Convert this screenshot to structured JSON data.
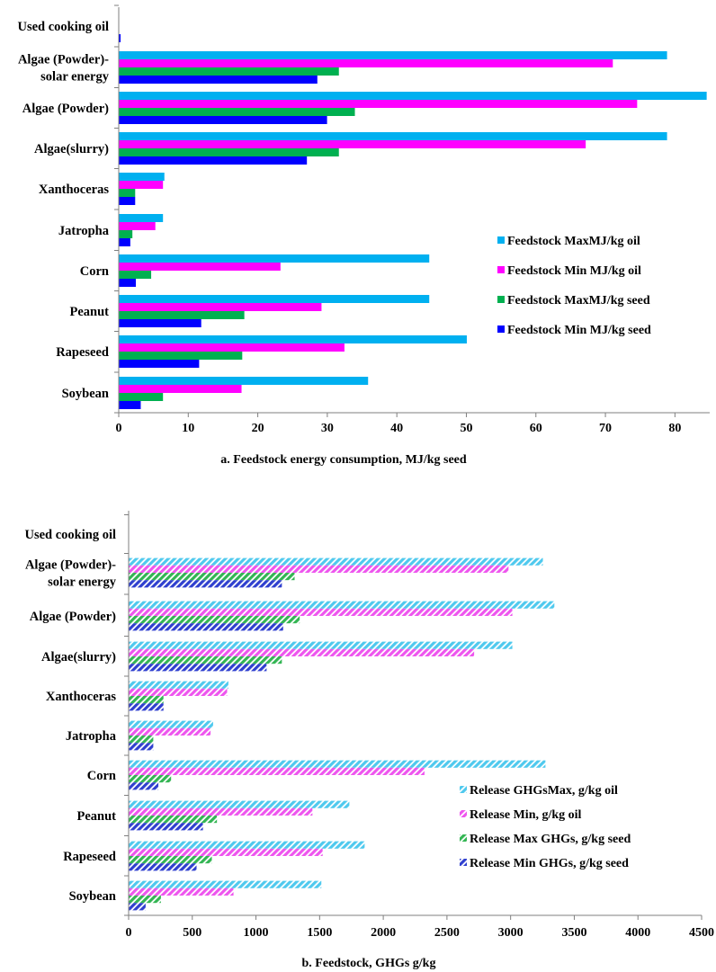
{
  "chart_data": [
    {
      "type": "bar",
      "orientation": "horizontal",
      "title": "a. Feedstock energy consumption, MJ/kg seed",
      "xlabel": "a. Feedstock energy consumption, MJ/kg seed",
      "xlim": [
        0,
        85
      ],
      "xticks": [
        0,
        10,
        20,
        30,
        40,
        50,
        60,
        70,
        80
      ],
      "legend_position": "right",
      "categories": [
        "Used cooking oil",
        "Algae (Powder)-solar energy",
        "Algae (Powder)",
        "Algae(slurry)",
        "Xanthoceras",
        "Jatropha",
        "Corn",
        "Peanut",
        "Rapeseed",
        "Soybean"
      ],
      "category_lines": [
        [
          "Used cooking oil"
        ],
        [
          "Algae (Powder)-",
          "solar energy"
        ],
        [
          "Algae (Powder)"
        ],
        [
          "Algae(slurry)"
        ],
        [
          "Xanthoceras"
        ],
        [
          "Jatropha"
        ],
        [
          "Corn"
        ],
        [
          "Peanut"
        ],
        [
          "Rapeseed"
        ],
        [
          "Soybean"
        ]
      ],
      "series": [
        {
          "name": "Feedstock MaxMJ/kg oil",
          "color": "#00b0f0",
          "values": [
            0,
            78.8,
            84.5,
            78.8,
            6.5,
            6.3,
            44.6,
            44.6,
            50.0,
            35.8
          ]
        },
        {
          "name": "Feedstock Min MJ/kg oil",
          "color": "#ff00ff",
          "values": [
            0,
            71.0,
            74.5,
            67.1,
            6.3,
            5.2,
            23.2,
            29.1,
            32.4,
            17.6
          ]
        },
        {
          "name": "Feedstock MaxMJ/kg seed",
          "color": "#00b050",
          "values": [
            0,
            31.6,
            33.9,
            31.6,
            2.3,
            1.9,
            4.6,
            18.0,
            17.7,
            6.3
          ]
        },
        {
          "name": "Feedstock Min MJ/kg seed",
          "color": "#0000ff",
          "values": [
            0.2,
            28.5,
            29.9,
            27.0,
            2.3,
            1.6,
            2.4,
            11.8,
            11.5,
            3.1
          ]
        }
      ]
    },
    {
      "type": "bar",
      "orientation": "horizontal",
      "title": "b. Feedstock,  GHGs g/kg",
      "xlabel": "b. Feedstock,  GHGs g/kg",
      "xlim": [
        0,
        4500
      ],
      "xticks": [
        0,
        500,
        1000,
        1500,
        2000,
        2500,
        3000,
        3500,
        4000,
        4500
      ],
      "legend_position": "right",
      "categories": [
        "Used cooking oil",
        "Algae (Powder)-solar energy",
        "Algae (Powder)",
        "Algae(slurry)",
        "Xanthoceras",
        "Jatropha",
        "Corn",
        "Peanut",
        "Rapeseed",
        "Soybean"
      ],
      "category_lines": [
        [
          "Used cooking oil"
        ],
        [
          "Algae (Powder)-",
          "solar energy"
        ],
        [
          "Algae (Powder)"
        ],
        [
          "Algae(slurry)"
        ],
        [
          "Xanthoceras"
        ],
        [
          "Jatropha"
        ],
        [
          "Corn"
        ],
        [
          "Peanut"
        ],
        [
          "Rapeseed"
        ],
        [
          "Soybean"
        ]
      ],
      "series": [
        {
          "name": "Release  GHGsMax,  g/kg oil",
          "color": "#4fc9ee",
          "values": [
            0,
            3250,
            3340,
            3010,
            780,
            660,
            3270,
            1730,
            1850,
            1510
          ]
        },
        {
          "name": "Release Min, g/kg oil",
          "color": "#ee55ee",
          "values": [
            0,
            2980,
            3010,
            2710,
            770,
            640,
            2320,
            1440,
            1520,
            820
          ]
        },
        {
          "name": "Release Max GHGs,   g/kg seed",
          "color": "#33b553",
          "values": [
            0,
            1300,
            1340,
            1200,
            270,
            190,
            330,
            690,
            650,
            250
          ]
        },
        {
          "name": "Release Min GHGs,    g/kg seed",
          "color": "#2f3fcf",
          "values": [
            0,
            1200,
            1210,
            1080,
            270,
            190,
            230,
            580,
            530,
            130
          ]
        }
      ]
    }
  ]
}
